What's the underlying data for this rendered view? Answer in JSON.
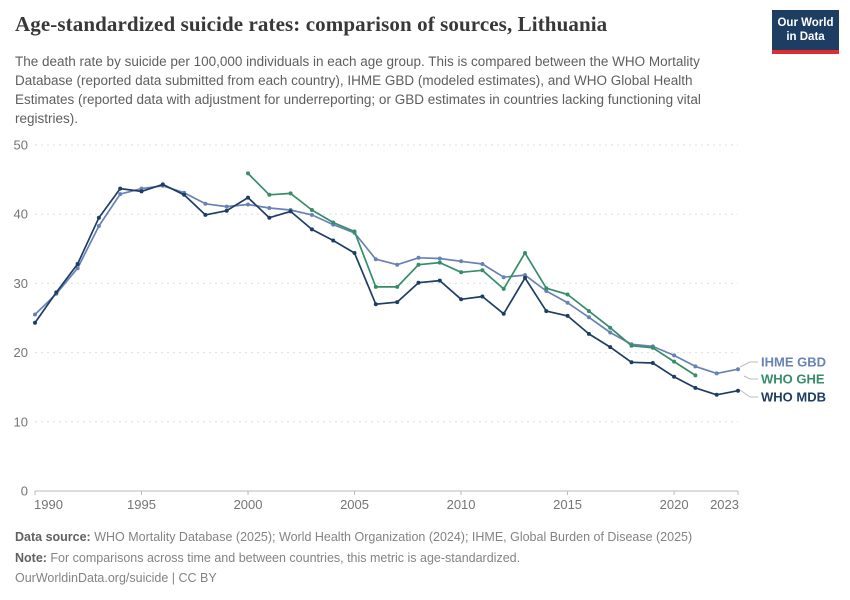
{
  "header": {
    "title": "Age-standardized suicide rates: comparison of sources, Lithuania",
    "subtitle": "The death rate by suicide per 100,000 individuals in each age group. This is compared between the WHO Mortality Database (reported data submitted from each country), IHME GBD (modeled estimates), and WHO Global Health Estimates (reported data with adjustment for underreporting; or GBD estimates in countries lacking functioning vital registries).",
    "logo": {
      "line1": "Our World",
      "line2": "in Data",
      "bg": "#1d3d63",
      "accent": "#dc2e32"
    }
  },
  "chart_data": {
    "type": "line",
    "title": "Age-standardized suicide rates: comparison of sources, Lithuania",
    "xlabel": "",
    "ylabel": "Death rate by suicide per 100,000",
    "xlim": [
      1990,
      2023
    ],
    "ylim": [
      0,
      50
    ],
    "x_ticks": [
      1990,
      1995,
      2000,
      2005,
      2010,
      2015,
      2020,
      2023
    ],
    "y_ticks": [
      0,
      10,
      20,
      30,
      40,
      50
    ],
    "grid": "horizontal dashed",
    "legend_position": "right",
    "series": [
      {
        "name": "IHME GBD",
        "color": "#6782b4",
        "start_year": 1990,
        "values": [
          25.5,
          28.5,
          32.2,
          38.3,
          42.9,
          43.7,
          44.1,
          43.1,
          41.5,
          41.1,
          41.4,
          40.9,
          40.6,
          39.9,
          38.5,
          37.3,
          33.5,
          32.7,
          33.7,
          33.6,
          33.2,
          32.8,
          30.9,
          31.2,
          28.9,
          27.2,
          25.1,
          22.9,
          21.2,
          20.9,
          19.6,
          18.0,
          17.0,
          17.6
        ]
      },
      {
        "name": "WHO GHE",
        "color": "#378c69",
        "start_year": 2000,
        "values": [
          45.9,
          42.8,
          43.0,
          40.6,
          38.8,
          37.5,
          29.5,
          29.5,
          32.7,
          33.0,
          31.6,
          31.9,
          29.2,
          34.4,
          29.3,
          28.4,
          26.0,
          23.6,
          21.0,
          20.7,
          18.7,
          16.7
        ]
      },
      {
        "name": "WHO MDB",
        "color": "#1d3d63",
        "start_year": 1990,
        "values": [
          24.3,
          28.7,
          32.8,
          39.5,
          43.7,
          43.3,
          44.3,
          42.8,
          39.9,
          40.5,
          42.4,
          39.5,
          40.4,
          37.8,
          36.2,
          34.4,
          27.0,
          27.3,
          30.1,
          30.4,
          27.7,
          28.1,
          25.6,
          30.8,
          26.0,
          25.3,
          22.7,
          20.8,
          18.6,
          18.5,
          16.5,
          14.9,
          13.9,
          14.5
        ]
      }
    ]
  },
  "footer": {
    "source_label": "Data source:",
    "source_text": " WHO Mortality Database (2025); World Health Organization (2024); IHME, Global Burden of Disease (2025)",
    "note_label": "Note:",
    "note_text": " For comparisons across time and between countries, this metric is age-standardized.",
    "link": "OurWorldinData.org/suicide",
    "separator": " | ",
    "license": "CC BY"
  }
}
